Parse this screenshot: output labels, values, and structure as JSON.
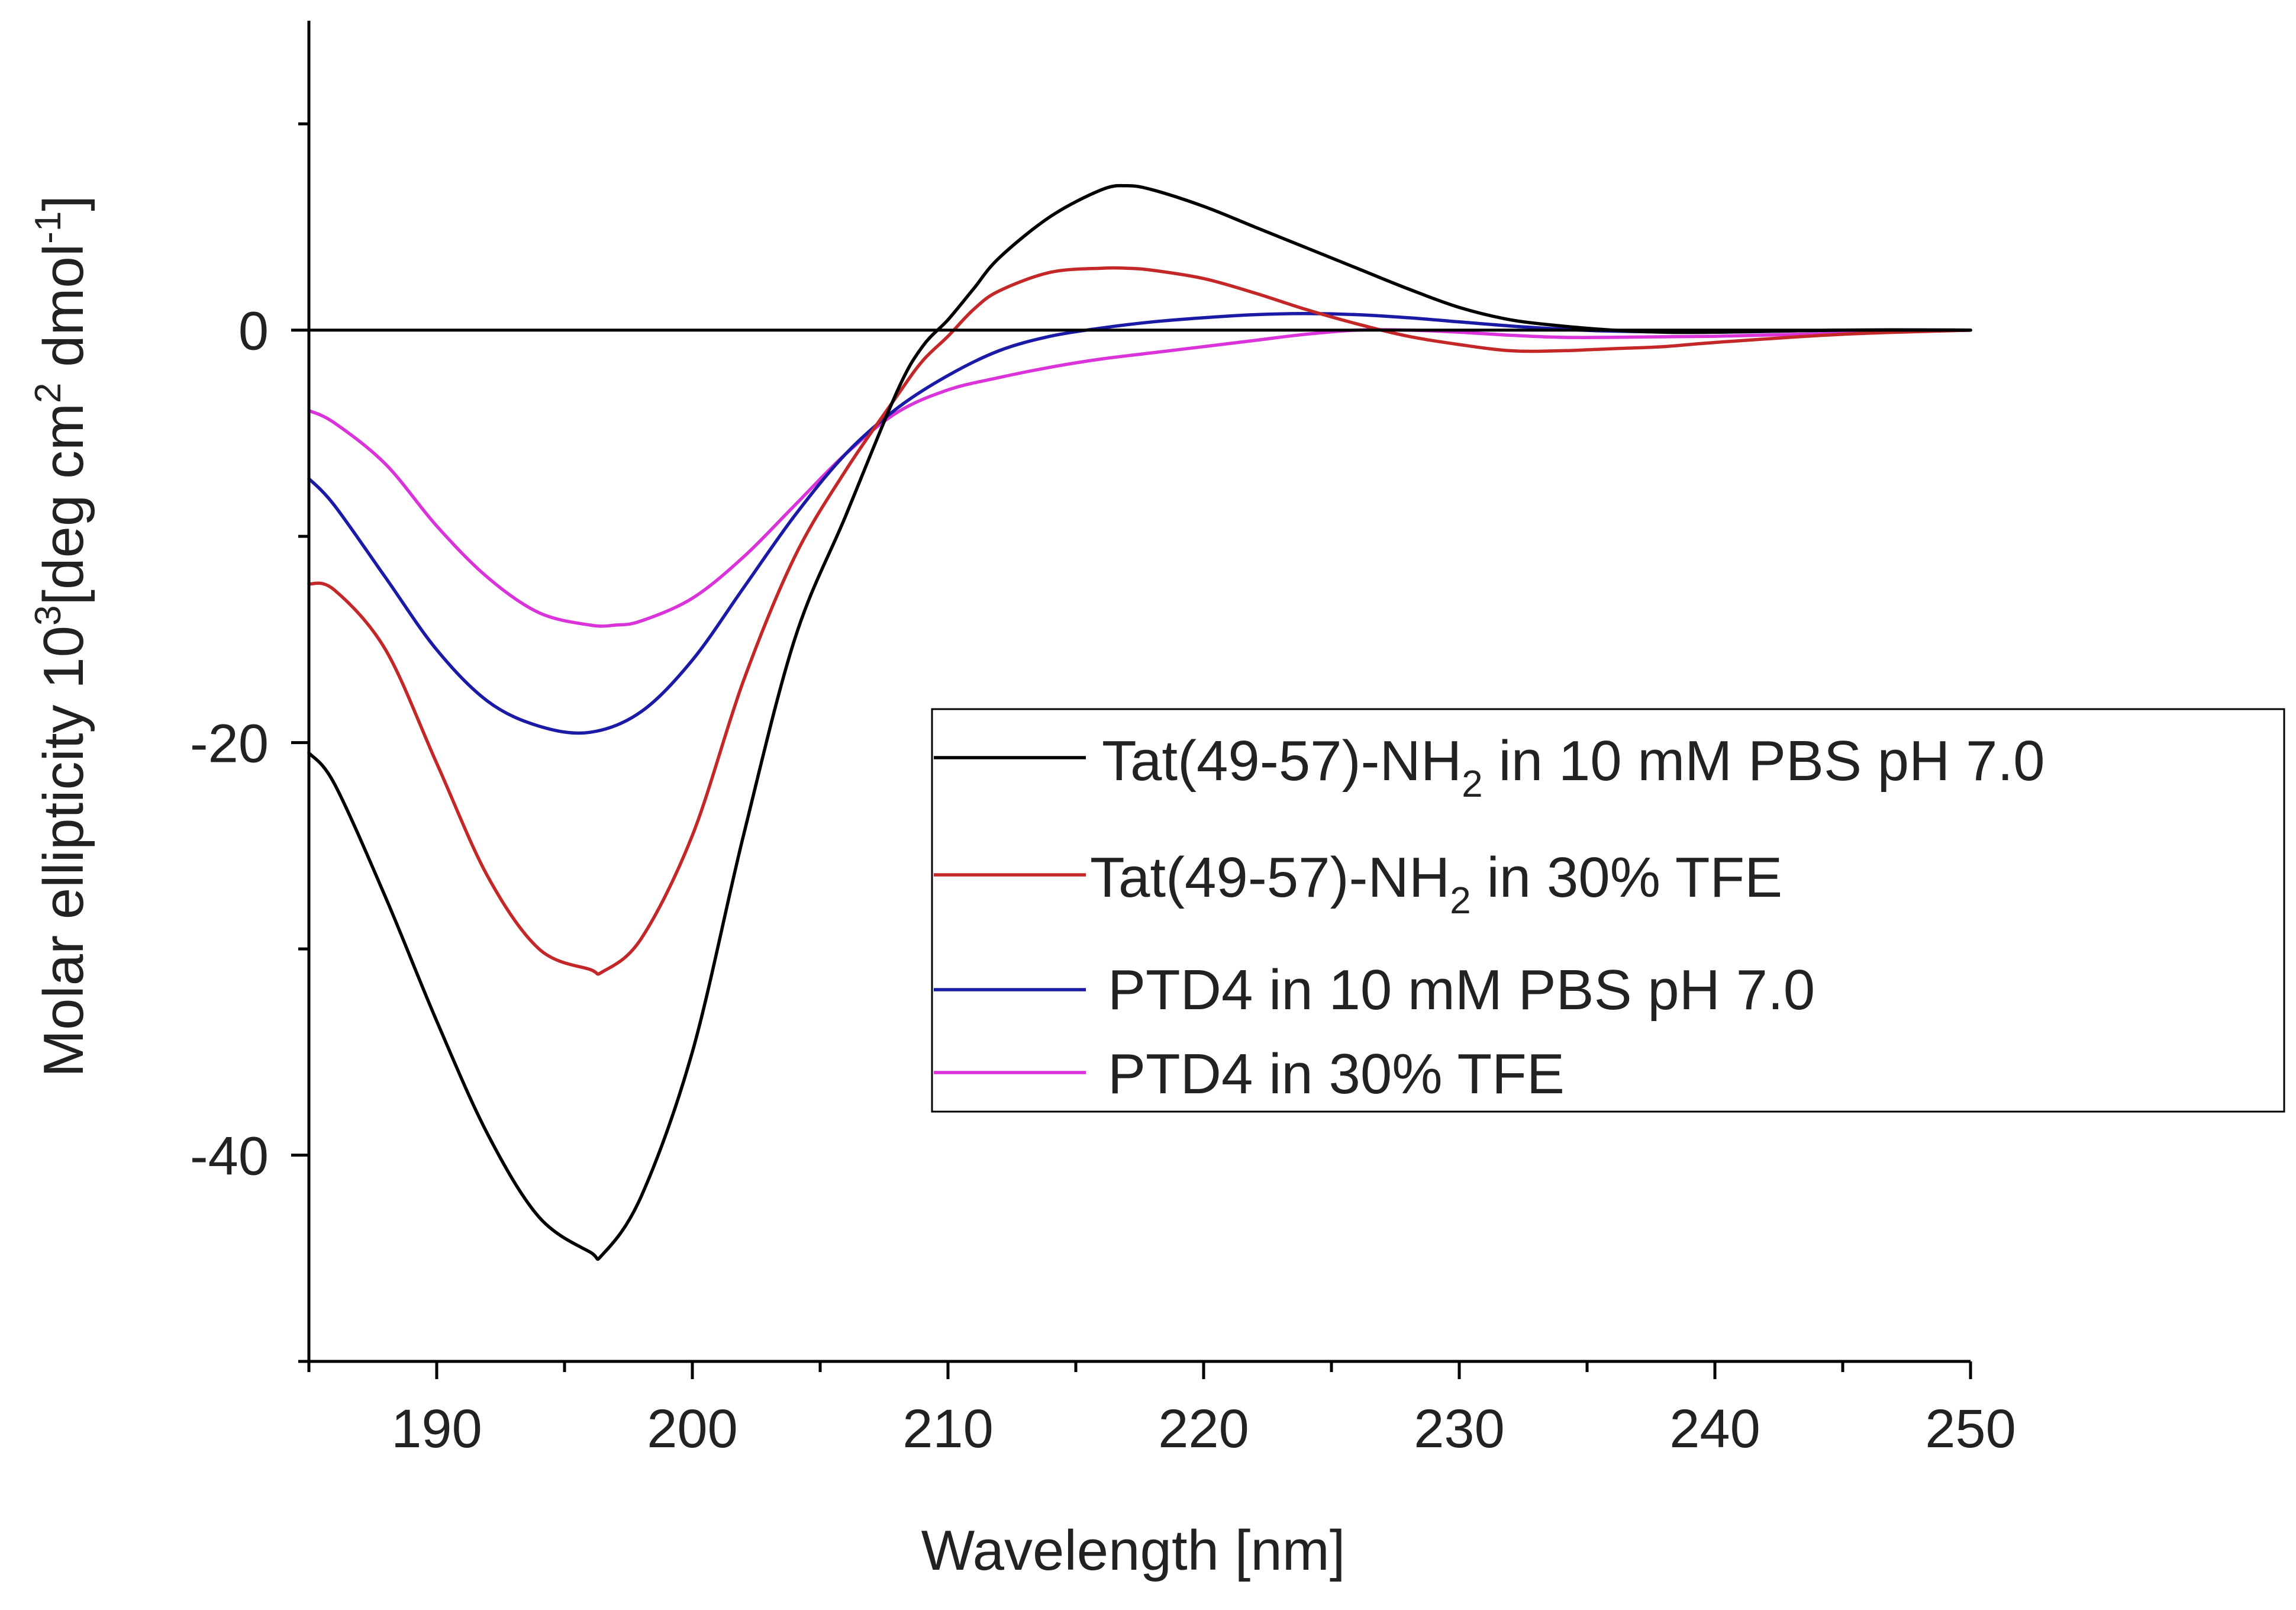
{
  "chart_data": {
    "type": "line",
    "xlabel": "Wavelength [nm]",
    "ylabel": {
      "prefix": "Molar ellipticity  10",
      "exp1": "3",
      "mid1": "[deg cm",
      "exp2": "2",
      "mid2": " dmol",
      "exp3": "-1",
      "suffix": "]"
    },
    "xlim": [
      185,
      250
    ],
    "ylim": [
      -50,
      15
    ],
    "x_ticks": [
      190,
      200,
      210,
      220,
      230,
      240,
      250
    ],
    "y_ticks": [
      -40,
      -20,
      0
    ],
    "x_tick_labels": [
      "190",
      "200",
      "210",
      "220",
      "230",
      "240",
      "250"
    ],
    "y_tick_labels": [
      "-40",
      "-20",
      "0"
    ],
    "zero_line": true,
    "legend_position": "center-right",
    "series": [
      {
        "name": "Tat(49-57)-NH2 in 10 mM PBS pH 7.0",
        "label_main": "Tat(49-57)-NH",
        "label_sub": "2",
        "label_rest": " in 10 mM PBS pH 7.0",
        "color": "#000000",
        "x": [
          185,
          186,
          188,
          190,
          192,
          194,
          196,
          196.5,
          198,
          200,
          202,
          204,
          206,
          208,
          209,
          210,
          211,
          212,
          214,
          216,
          217,
          218,
          220,
          222,
          224,
          226,
          228,
          230,
          232,
          234,
          236,
          238,
          240,
          245,
          250
        ],
        "y": [
          -20.5,
          -22,
          -27.5,
          -33.5,
          -39,
          -43,
          -44.7,
          -44.8,
          -42,
          -35,
          -24.5,
          -15,
          -9,
          -3,
          -0.8,
          0.5,
          2,
          3.5,
          5.5,
          6.8,
          7,
          6.8,
          6,
          5,
          4,
          3,
          2,
          1.1,
          0.5,
          0.2,
          0,
          -0.1,
          -0.1,
          0,
          0
        ]
      },
      {
        "name": "Tat(49-57)-NH2 in 30% TFE",
        "label_main": "Tat(49-57)-NH",
        "label_sub": "2",
        "label_rest": " in 30% TFE",
        "color": "#c42727",
        "x": [
          185,
          186,
          188,
          190,
          192,
          194,
          196,
          196.5,
          198,
          200,
          202,
          204,
          206,
          208,
          209,
          210,
          211,
          212,
          214,
          216,
          217,
          218,
          220,
          222,
          224,
          226,
          228,
          230,
          232,
          234,
          236,
          238,
          240,
          245,
          250
        ],
        "y": [
          -12.3,
          -12.6,
          -15.5,
          -21,
          -26.5,
          -30,
          -31,
          -31.1,
          -29.5,
          -24.5,
          -17,
          -11,
          -6.8,
          -3.2,
          -1.5,
          -0.3,
          1,
          1.9,
          2.8,
          3,
          3,
          2.9,
          2.5,
          1.8,
          1,
          0.3,
          -0.3,
          -0.7,
          -1,
          -1,
          -0.9,
          -0.8,
          -0.6,
          -0.2,
          0
        ]
      },
      {
        "name": "PTD4 in 10 mM PBS pH 7.0",
        "label_main": "PTD4 in 10 mM PBS pH 7.0",
        "label_sub": "",
        "label_rest": "",
        "color": "#1a1aa6",
        "x": [
          185,
          186,
          188,
          190,
          192,
          194,
          196,
          198,
          200,
          202,
          204,
          206,
          208,
          210,
          212,
          214,
          216,
          218,
          220,
          222,
          224,
          226,
          228,
          230,
          232,
          234,
          236,
          240,
          245,
          250
        ],
        "y": [
          -7.2,
          -8.5,
          -12,
          -15.5,
          -18,
          -19.2,
          -19.5,
          -18.5,
          -16,
          -12.5,
          -9,
          -6,
          -3.8,
          -2.2,
          -1,
          -0.3,
          0.1,
          0.4,
          0.6,
          0.75,
          0.8,
          0.75,
          0.6,
          0.4,
          0.2,
          0.05,
          -0.05,
          -0.1,
          0,
          0
        ]
      },
      {
        "name": "PTD4 in 30% TFE",
        "label_main": "PTD4 in 30% TFE",
        "label_sub": "",
        "label_rest": "",
        "color": "#d933d9",
        "x": [
          185,
          186,
          188,
          190,
          192,
          194,
          196,
          197,
          198,
          200,
          202,
          204,
          206,
          208,
          210,
          212,
          214,
          216,
          218,
          220,
          222,
          224,
          226,
          228,
          230,
          232,
          234,
          236,
          240,
          245,
          250
        ],
        "y": [
          -3.9,
          -4.5,
          -6.5,
          -9.5,
          -12,
          -13.7,
          -14.3,
          -14.3,
          -14.1,
          -13,
          -11,
          -8.5,
          -6,
          -4,
          -2.9,
          -2.3,
          -1.8,
          -1.4,
          -1.1,
          -0.8,
          -0.5,
          -0.2,
          0,
          0,
          -0.1,
          -0.25,
          -0.35,
          -0.35,
          -0.3,
          -0.15,
          0
        ]
      }
    ]
  }
}
